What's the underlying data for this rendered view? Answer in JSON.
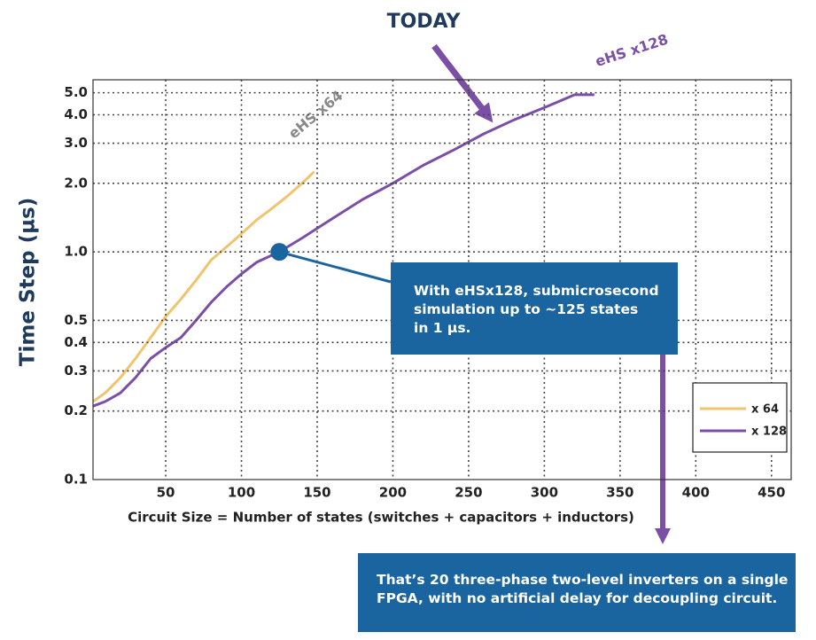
{
  "chart_data": {
    "type": "line",
    "annotation": "TODAY",
    "y_label": "Time Step (µs)",
    "x_label": "Circuit Size = Number of states (switches + capacitors + inductors)",
    "xlim": [
      2,
      463
    ],
    "xticks": [
      50,
      100,
      150,
      200,
      250,
      300,
      350,
      400,
      450
    ],
    "ylim": [
      0.1,
      5.7
    ],
    "log_y": true,
    "yticks": [
      0.1,
      0.2,
      0.3,
      0.4,
      0.5,
      {
        "value": 1,
        "label": "1.0"
      },
      {
        "value": 2,
        "label": "2.0"
      },
      {
        "value": 3,
        "label": "3.0"
      },
      {
        "value": 4,
        "label": "4.0"
      },
      {
        "value": 5,
        "label": "5.0"
      }
    ],
    "grid": true,
    "legend": "lower right",
    "series": [
      {
        "name": "x 64",
        "curve_label": "eHS x64",
        "color": "#f0c46c",
        "x": [
          2,
          10,
          20,
          30,
          40,
          50,
          60,
          70,
          80,
          90,
          100,
          110,
          120,
          130,
          140,
          148
        ],
        "values": [
          0.22,
          0.24,
          0.28,
          0.34,
          0.42,
          0.52,
          0.62,
          0.75,
          0.92,
          1.05,
          1.2,
          1.38,
          1.55,
          1.75,
          2.0,
          2.25
        ]
      },
      {
        "name": "x 128",
        "curve_label": "eHS x128",
        "color": "#7b4fa5",
        "x": [
          2,
          10,
          20,
          30,
          40,
          50,
          60,
          70,
          80,
          90,
          100,
          110,
          125,
          140,
          160,
          180,
          200,
          220,
          240,
          260,
          280,
          300,
          320,
          333
        ],
        "values": [
          0.21,
          0.22,
          0.24,
          0.28,
          0.34,
          0.38,
          0.42,
          0.5,
          0.6,
          0.7,
          0.8,
          0.9,
          1.0,
          1.15,
          1.4,
          1.7,
          2.0,
          2.4,
          2.8,
          3.3,
          3.8,
          4.3,
          4.9,
          4.9
        ]
      }
    ],
    "highlight": {
      "x": 125,
      "y": 1
    },
    "callout": [
      "With eHSx128, submicrosecond",
      "simulation up to ~125 states",
      "in 1 µs."
    ],
    "footnote": [
      "That’s 20 three-phase two-level inverters on a single",
      "FPGA, with no artificial delay for decoupling circuit."
    ]
  }
}
